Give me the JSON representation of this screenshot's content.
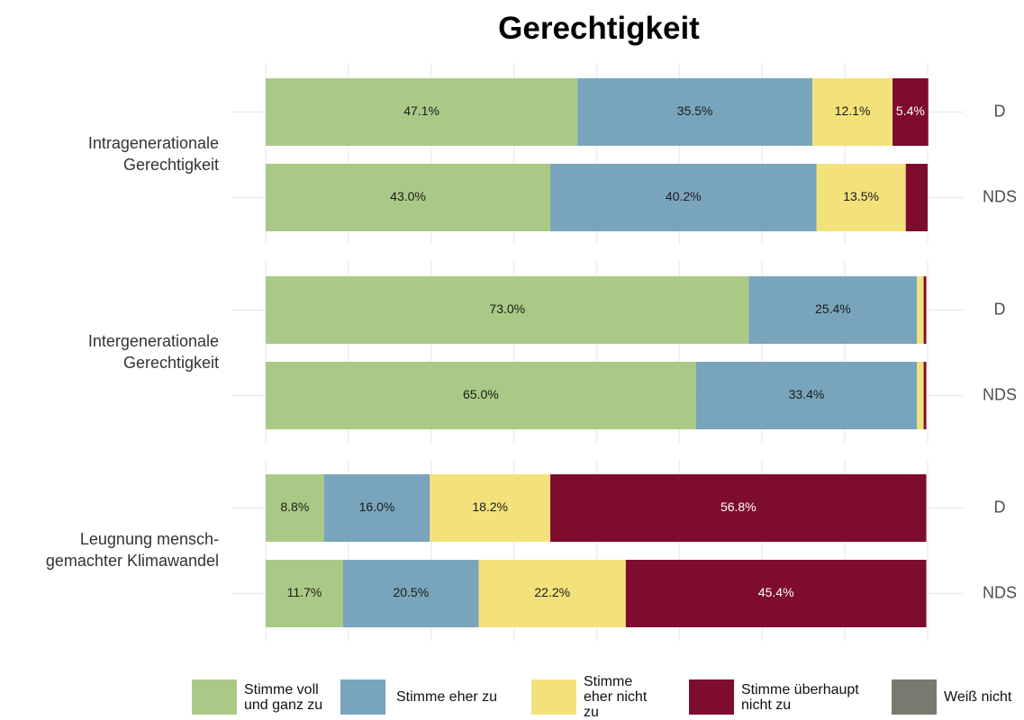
{
  "chart_data": {
    "type": "stacked-bar-horizontal",
    "title": "Gerechtigkeit",
    "facets": [
      "Intragenerationale Gerechtigkeit",
      "Intergenerationale Gerechtigkeit",
      "Leugnung mensch-gemachter Klimawandel"
    ],
    "categories": [
      "D",
      "NDS",
      "D",
      "NDS",
      "D",
      "NDS"
    ],
    "series": [
      {
        "name": "Stimme voll und ganz zu",
        "color": "#abc986",
        "label_color": "#1a1a1a",
        "values": [
          47.1,
          43.0,
          73.0,
          65.0,
          8.8,
          11.7
        ],
        "value_labels": [
          "47.1%",
          "43.0%",
          "73.0%",
          "65.0%",
          "8.8%",
          "11.7%"
        ]
      },
      {
        "name": "Stimme eher zu",
        "color": "#78a5bb",
        "label_color": "#1a1a1a",
        "values": [
          35.5,
          40.2,
          25.4,
          33.4,
          16.0,
          20.5
        ],
        "value_labels": [
          "35.5%",
          "40.2%",
          "25.4%",
          "33.4%",
          "16.0%",
          "20.5%"
        ]
      },
      {
        "name": "Stimme eher nicht zu",
        "color": "#f3e27c",
        "label_color": "#1a1a1a",
        "values": [
          12.1,
          13.5,
          1.0,
          1.0,
          18.2,
          22.2
        ],
        "value_labels": [
          "12.1%",
          "13.5%",
          null,
          null,
          "18.2%",
          "22.2%"
        ]
      },
      {
        "name": "Stimme überhaupt nicht zu",
        "color": "#7d0c2e",
        "label_color": "#ffffff",
        "values": [
          5.4,
          3.3,
          0.4,
          0.4,
          56.8,
          45.4
        ],
        "value_labels": [
          "5.4%",
          null,
          null,
          null,
          "56.8%",
          "45.4%"
        ]
      },
      {
        "name": "Weiß nicht",
        "color": "#777a6e",
        "label_color": "#ffffff",
        "values": [
          0,
          0,
          0,
          0,
          0,
          0
        ],
        "value_labels": [
          null,
          null,
          null,
          null,
          null,
          null
        ]
      }
    ],
    "xlim": [
      0,
      100
    ],
    "xticks": [
      0,
      12.5,
      25,
      37.5,
      50,
      62.5,
      75,
      87.5,
      100
    ],
    "grid": true
  }
}
